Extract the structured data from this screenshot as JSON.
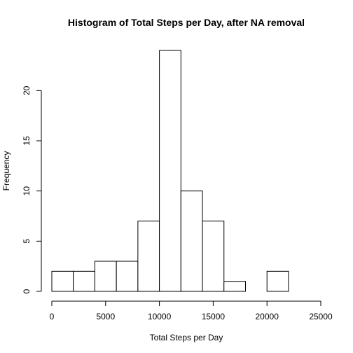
{
  "chart_data": {
    "type": "bar",
    "subtype": "histogram",
    "title": "Histogram of Total Steps per Day, after NA removal",
    "xlabel": "Total Steps per Day",
    "ylabel": "Frequency",
    "bins": [
      {
        "from": 0,
        "to": 2000,
        "count": 2
      },
      {
        "from": 2000,
        "to": 4000,
        "count": 2
      },
      {
        "from": 4000,
        "to": 6000,
        "count": 3
      },
      {
        "from": 6000,
        "to": 8000,
        "count": 3
      },
      {
        "from": 8000,
        "to": 10000,
        "count": 7
      },
      {
        "from": 10000,
        "to": 12000,
        "count": 24
      },
      {
        "from": 12000,
        "to": 14000,
        "count": 10
      },
      {
        "from": 14000,
        "to": 16000,
        "count": 7
      },
      {
        "from": 16000,
        "to": 18000,
        "count": 1
      },
      {
        "from": 18000,
        "to": 20000,
        "count": 0
      },
      {
        "from": 20000,
        "to": 22000,
        "count": 2
      }
    ],
    "xlim": [
      0,
      25000
    ],
    "ylim": [
      0,
      24
    ],
    "x_ticks": [
      0,
      5000,
      10000,
      15000,
      20000,
      25000
    ],
    "x_tick_labels": [
      "0",
      "5000",
      "10000",
      "15000",
      "20000",
      "25000"
    ],
    "y_ticks": [
      0,
      5,
      10,
      15,
      20
    ],
    "y_tick_labels": [
      "0",
      "5",
      "10",
      "15",
      "20"
    ],
    "grid": false,
    "colors": {
      "bar_fill": "#ffffff",
      "bar_stroke": "#000000",
      "background": "#ffffff"
    }
  }
}
